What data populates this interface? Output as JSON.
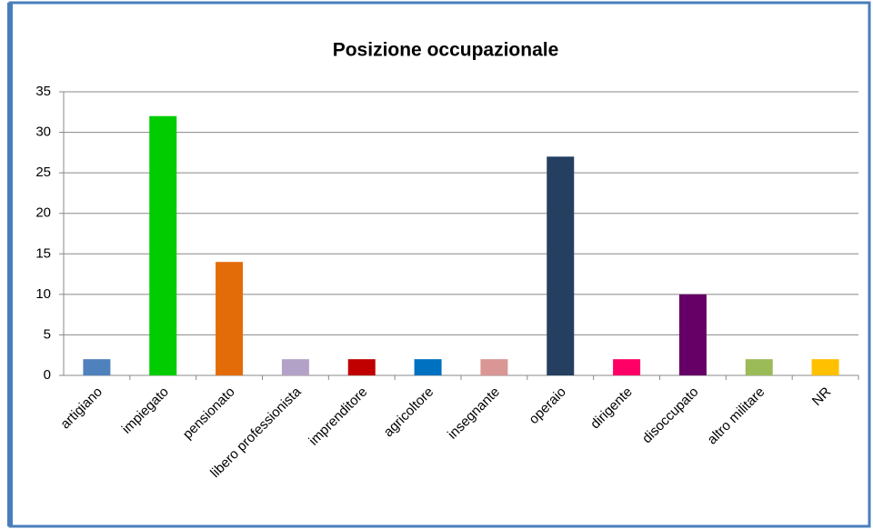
{
  "chart_data": {
    "type": "bar",
    "title": "Posizione occupazionale",
    "categories": [
      "artigiano",
      "impiegato",
      "pensionato",
      "libero professionista",
      "imprenditore",
      "agricoltore",
      "insegnante",
      "operaio",
      "dirigente",
      "disoccupato",
      "altro  militare",
      "NR"
    ],
    "values": [
      2,
      32,
      14,
      2,
      2,
      2,
      2,
      27,
      2,
      10,
      2,
      2
    ],
    "colors": [
      "#4f81bd",
      "#00cc00",
      "#e36c09",
      "#b3a2c7",
      "#c00000",
      "#0070c0",
      "#d99694",
      "#243f60",
      "#ff0066",
      "#660066",
      "#9bbb59",
      "#ffc000"
    ],
    "ylim": [
      0,
      35
    ],
    "yticks": [
      0,
      5,
      10,
      15,
      20,
      25,
      30,
      35
    ],
    "grid": true
  }
}
